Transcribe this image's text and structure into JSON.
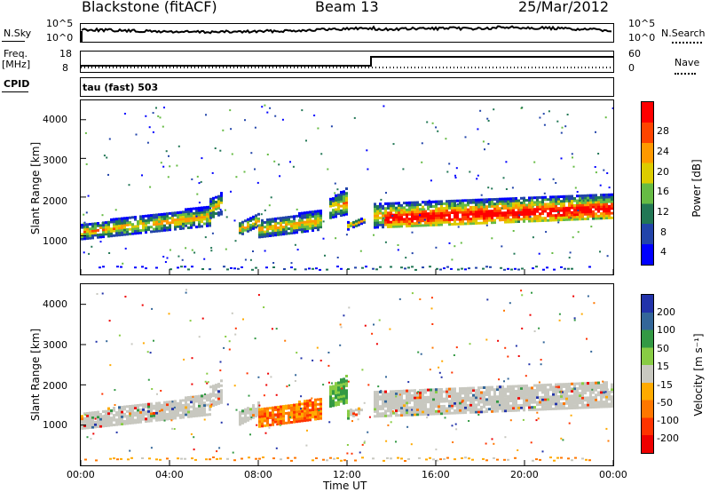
{
  "header": {
    "station": "Blackstone (fitACF)",
    "beam": "Beam 13",
    "date": "25/Mar/2012"
  },
  "top_panels": {
    "nsky_label": "N.Sky",
    "nsearch_label": "N.Search",
    "nsky_ticks": [
      "10^5",
      "10^0"
    ],
    "nsearch_ticks": [
      "10^5",
      "10^0"
    ],
    "freq_label": "Freq.",
    "freq_unit": "[MHz]",
    "freq_ticks": [
      "18",
      "8"
    ],
    "nave_label": "Nave",
    "nave_ticks": [
      "60",
      "0"
    ],
    "cpid_label": "CPID",
    "cpid_text": "tau (fast) 503"
  },
  "chart_data": [
    {
      "type": "heatmap",
      "title": "",
      "xlabel": "Time UT",
      "ylabel": "Slant Range [km]",
      "x_ticks": [
        "00:00",
        "04:00",
        "08:00",
        "12:00",
        "16:00",
        "20:00",
        "00:00"
      ],
      "y_ticks": [
        "1000",
        "2000",
        "3000",
        "4000"
      ],
      "ylim": [
        0,
        4500
      ],
      "colorbar_label": "Power [dB]",
      "colorbar_ticks": [
        "28",
        "24",
        "20",
        "16",
        "12",
        "8",
        "4"
      ],
      "colors": [
        "#0000ff",
        "#2244aa",
        "#227755",
        "#66bb44",
        "#ddcc00",
        "#ff9900",
        "#ff4400",
        "#ff0000"
      ]
    },
    {
      "type": "heatmap",
      "title": "",
      "xlabel": "Time UT",
      "ylabel": "Slant Range [km]",
      "x_ticks": [
        "00:00",
        "04:00",
        "08:00",
        "12:00",
        "16:00",
        "20:00",
        "00:00"
      ],
      "y_ticks": [
        "1000",
        "2000",
        "3000",
        "4000"
      ],
      "ylim": [
        0,
        4500
      ],
      "colorbar_label": "Velocity [m s⁻¹]",
      "colorbar_ticks": [
        "200",
        "100",
        "50",
        "15",
        "-15",
        "-50",
        "-100",
        "-200"
      ],
      "colors": [
        "#2233aa",
        "#336699",
        "#339944",
        "#88cc44",
        "#c8c8c0",
        "#ffaa00",
        "#ff7700",
        "#ff3300",
        "#ee0000"
      ]
    }
  ],
  "axis": {
    "xlabel": "Time UT"
  }
}
